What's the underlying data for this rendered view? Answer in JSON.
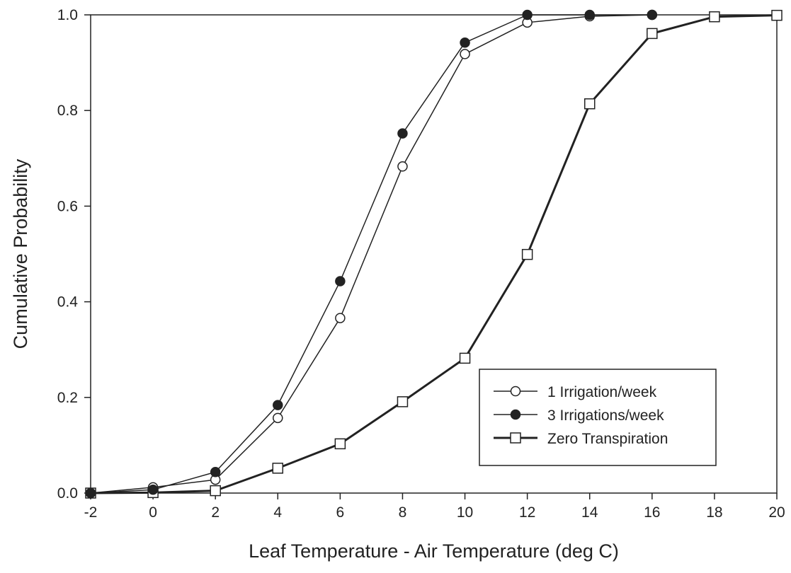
{
  "chart_data": {
    "type": "line",
    "xlabel": "Leaf Temperature - Air Temperature (deg C)",
    "ylabel": "Cumulative Probability",
    "xlim": [
      -2,
      20
    ],
    "ylim": [
      0,
      1.0
    ],
    "x_ticks": [
      -2,
      0,
      2,
      4,
      6,
      8,
      10,
      12,
      14,
      16,
      18,
      20
    ],
    "x_tick_labels": [
      "-2",
      "0",
      "2",
      "4",
      "6",
      "8",
      "10",
      "12",
      "14",
      "16",
      "18",
      "20"
    ],
    "y_ticks": [
      0,
      0.2,
      0.4,
      0.6,
      0.8,
      1.0
    ],
    "y_tick_labels": [
      "0.0",
      "0.2",
      "0.4",
      "0.6",
      "0.8",
      "1.0"
    ],
    "grid": false,
    "legend_position": "bottom-right",
    "series": [
      {
        "name": "1 Irrigation/week",
        "marker": "open-circle",
        "color": "#222222",
        "x": [
          -2,
          0,
          2,
          4,
          6,
          8,
          10,
          12,
          14,
          16
        ],
        "y": [
          0.0,
          0.012,
          0.028,
          0.157,
          0.366,
          0.683,
          0.918,
          0.984,
          0.997,
          1.0
        ]
      },
      {
        "name": "3 Irrigations/week",
        "marker": "filled-circle",
        "color": "#222222",
        "x": [
          -2,
          0,
          2,
          4,
          6,
          8,
          10,
          12,
          14,
          16
        ],
        "y": [
          0.0,
          0.007,
          0.044,
          0.184,
          0.443,
          0.752,
          0.942,
          1.0,
          1.0,
          1.0
        ]
      },
      {
        "name": "Zero Transpiration",
        "marker": "open-square",
        "color": "#222222",
        "x": [
          -2,
          0,
          2,
          4,
          6,
          8,
          10,
          12,
          14,
          16,
          18,
          20
        ],
        "y": [
          0.0,
          0.001,
          0.005,
          0.052,
          0.103,
          0.191,
          0.282,
          0.499,
          0.814,
          0.961,
          0.996,
          0.999
        ]
      }
    ]
  }
}
